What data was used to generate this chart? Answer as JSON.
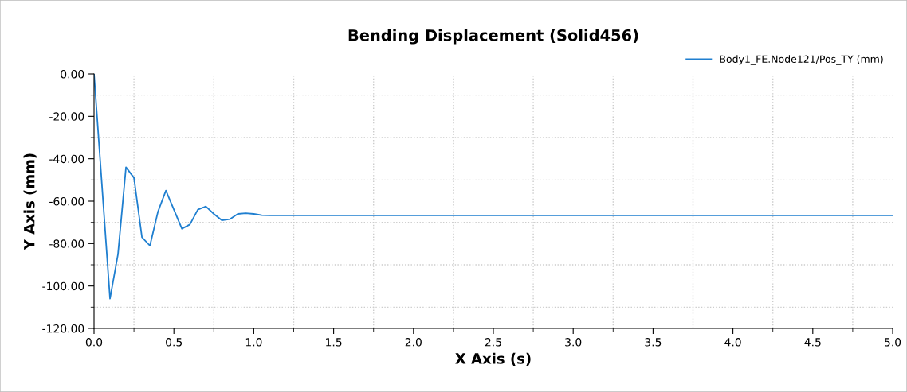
{
  "chart_data": {
    "type": "line",
    "title": "Bending Displacement (Solid456)",
    "xlabel": "X Axis (s)",
    "ylabel": "Y Axis (mm)",
    "series": [
      {
        "name": "Body1_FE.Node121/Pos_TY (mm)",
        "color": "#1f7fd0",
        "x": [
          0,
          0.1,
          0.15,
          0.2,
          0.25,
          0.3,
          0.35,
          0.4,
          0.45,
          0.5,
          0.55,
          0.6,
          0.65,
          0.7,
          0.75,
          0.8,
          0.85,
          0.9,
          0.95,
          1.0,
          1.05,
          1.1,
          5.0
        ],
        "values": [
          0,
          -106,
          -85,
          -44,
          -49,
          -77,
          -81,
          -65,
          -55,
          -64,
          -73,
          -71,
          -64,
          -62.5,
          -66,
          -69,
          -68.5,
          -66,
          -65.7,
          -66,
          -66.6,
          -66.7,
          -66.7
        ]
      }
    ],
    "xlim": [
      0,
      5
    ],
    "ylim": [
      -120,
      0
    ],
    "xticks": [
      {
        "value": 0,
        "label": "0.0"
      },
      {
        "value": 0.5,
        "label": "0.5"
      },
      {
        "value": 1,
        "label": "1.0"
      },
      {
        "value": 1.5,
        "label": "1.5"
      },
      {
        "value": 2,
        "label": "2.0"
      },
      {
        "value": 2.5,
        "label": "2.5"
      },
      {
        "value": 3,
        "label": "3.0"
      },
      {
        "value": 3.5,
        "label": "3.5"
      },
      {
        "value": 4,
        "label": "4.0"
      },
      {
        "value": 4.5,
        "label": "4.5"
      },
      {
        "value": 5,
        "label": "5.0"
      }
    ],
    "yticks": [
      {
        "value": 0,
        "label": "0.00"
      },
      {
        "value": -20,
        "label": "-20.00"
      },
      {
        "value": -40,
        "label": "-40.00"
      },
      {
        "value": -60,
        "label": "-60.00"
      },
      {
        "value": -80,
        "label": "-80.00"
      },
      {
        "value": -100,
        "label": "-100.00"
      },
      {
        "value": -120,
        "label": "-120.00"
      }
    ],
    "grid": true,
    "legend": "top right",
    "marker": "none",
    "line_style": "solid"
  }
}
